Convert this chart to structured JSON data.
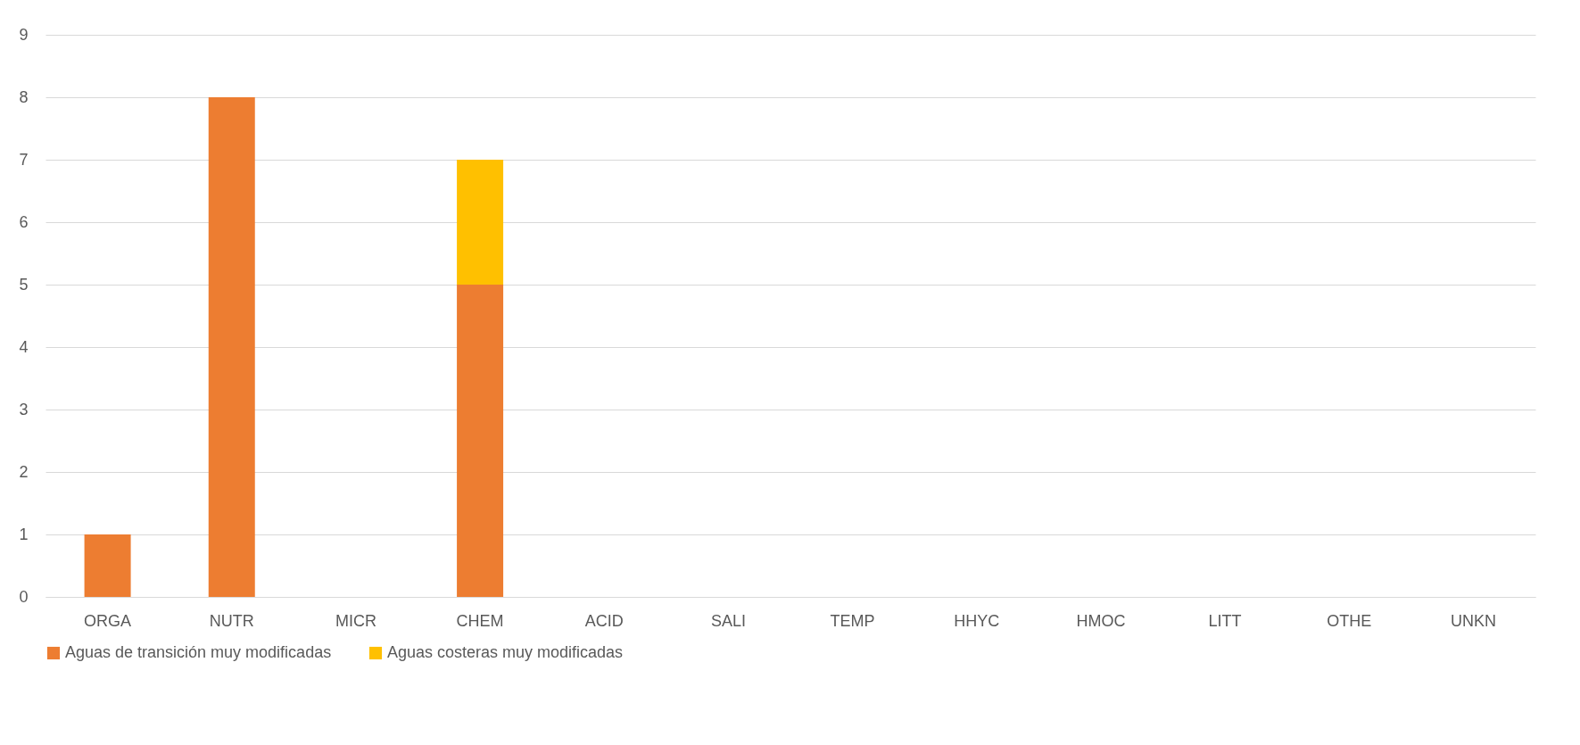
{
  "chart_data": {
    "type": "bar",
    "stacked": true,
    "categories": [
      "ORGA",
      "NUTR",
      "MICR",
      "CHEM",
      "ACID",
      "SALI",
      "TEMP",
      "HHYC",
      "HMOC",
      "LITT",
      "OTHE",
      "UNKN"
    ],
    "series": [
      {
        "name": "Aguas de transición muy modificadas",
        "color": "#ed7d31",
        "values": [
          1,
          8,
          0,
          5,
          0,
          0,
          0,
          0,
          0,
          0,
          0,
          0
        ]
      },
      {
        "name": "Aguas costeras muy modificadas",
        "color": "#ffc000",
        "values": [
          0,
          0,
          0,
          2,
          0,
          0,
          0,
          0,
          0,
          0,
          0,
          0
        ]
      }
    ],
    "ylim": [
      0,
      9
    ],
    "yticks": [
      0,
      1,
      2,
      3,
      4,
      5,
      6,
      7,
      8,
      9
    ],
    "grid": "y",
    "legend": "bottom"
  }
}
